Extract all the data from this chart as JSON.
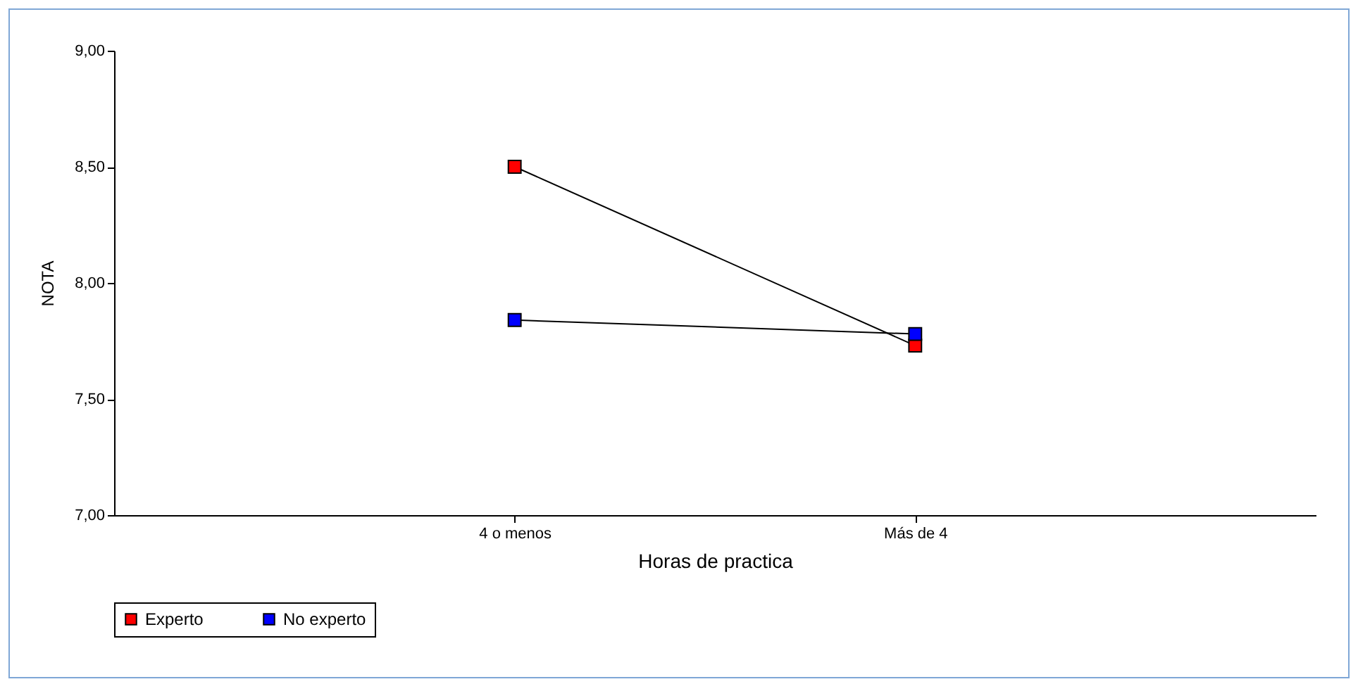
{
  "chart_data": {
    "type": "line",
    "xlabel": "Horas de practica",
    "ylabel": "NOTA",
    "categories": [
      "4 o menos",
      "Más de 4"
    ],
    "series": [
      {
        "name": "Experto",
        "color": "#ff0000",
        "values": [
          8.5,
          7.73
        ]
      },
      {
        "name": "No experto",
        "color": "#0000ff",
        "values": [
          7.84,
          7.78
        ]
      }
    ],
    "ylim": [
      7,
      9
    ],
    "yticks": [
      {
        "value": 7,
        "label": "7,00"
      },
      {
        "value": 7.5,
        "label": "7,50"
      },
      {
        "value": 8,
        "label": "8,00"
      },
      {
        "value": 8.5,
        "label": "8,50"
      },
      {
        "value": 9,
        "label": "9,00"
      }
    ],
    "grid": false,
    "legend": "bottom",
    "marker": "square",
    "line_style": "solid"
  }
}
